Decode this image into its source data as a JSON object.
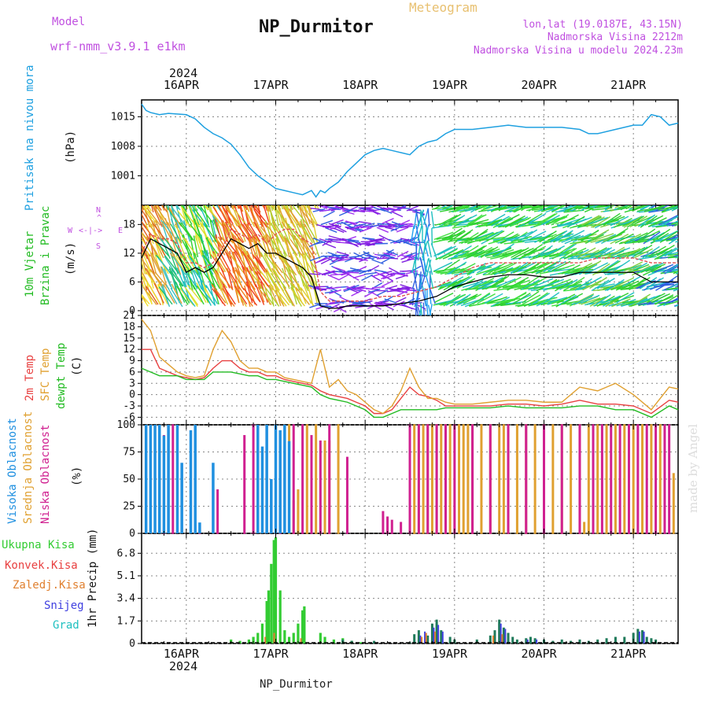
{
  "header": {
    "title": "NP_Durmitor",
    "model_label": "Model",
    "model_value": "wrf-nmm_v3.9.1 e1km",
    "meteogram": "Meteogram",
    "lonlat": "lon,lat (19.0187E, 43.15N)",
    "elevation": "Nadmorska Visina 2212m",
    "model_elevation": "Nadmorska Visina u modelu 2024.23m"
  },
  "footer": {
    "station": "NP_Durmitor",
    "watermark": "made by Angel"
  },
  "colors": {
    "pressure": "#1ea0e0",
    "wind_label": "#22bb22",
    "wind_speed": "#000000",
    "wind_gust": "#e05050",
    "t2m": "#e84040",
    "tsfc": "#e0a030",
    "dewpt": "#22bb22",
    "cloud_high": "#2090e0",
    "cloud_mid": "#e0a030",
    "cloud_low": "#d02090",
    "precip_total": "#33cc33",
    "precip_conv": "#e84040",
    "precip_frz": "#e08030",
    "precip_snow": "#4040e0",
    "precip_grad": "#20c0c0"
  },
  "chart_data": [
    {
      "type": "line",
      "panel": "pressure",
      "label": "Pritisak na nivou mora",
      "unit": "(hPa)",
      "x_ticks": [
        "16APR",
        "17APR",
        "18APR",
        "19APR",
        "20APR",
        "21APR"
      ],
      "x_year": "2024",
      "yticks": [
        1001,
        1008,
        1015
      ],
      "ylim": [
        994,
        1019
      ],
      "x": [
        15.5,
        15.55,
        15.6,
        15.7,
        15.8,
        16.0,
        16.1,
        16.2,
        16.3,
        16.4,
        16.5,
        16.6,
        16.7,
        16.8,
        16.9,
        17.0,
        17.1,
        17.2,
        17.3,
        17.4,
        17.45,
        17.5,
        17.55,
        17.6,
        17.7,
        17.8,
        17.9,
        18.0,
        18.1,
        18.2,
        18.3,
        18.4,
        18.5,
        18.6,
        18.7,
        18.8,
        18.9,
        19.0,
        19.2,
        19.4,
        19.6,
        19.8,
        20.0,
        20.2,
        20.4,
        20.5,
        20.6,
        20.8,
        21.0,
        21.1,
        21.2,
        21.3,
        21.4,
        21.5
      ],
      "y": [
        1018,
        1016.5,
        1016,
        1015.5,
        1015.8,
        1015.5,
        1014.5,
        1012.5,
        1011,
        1010,
        1008.5,
        1006,
        1003,
        1001,
        999.5,
        998,
        997.5,
        997,
        996.5,
        997.5,
        996,
        997.5,
        997,
        998,
        999.5,
        1002,
        1004,
        1006,
        1007,
        1007.5,
        1007,
        1006.5,
        1006,
        1008,
        1009,
        1009.5,
        1011,
        1012,
        1012,
        1012.5,
        1013,
        1012.5,
        1012.5,
        1012.5,
        1012,
        1011,
        1011,
        1012,
        1013,
        1013,
        1015.5,
        1015,
        1013,
        1013.5
      ]
    },
    {
      "type": "line",
      "panel": "wind",
      "label": "10m Vjetar Brzina i Pravac",
      "unit": "(m/s)",
      "compass": [
        "N",
        "S",
        "W",
        "E"
      ],
      "yticks": [
        0,
        6,
        12,
        18
      ],
      "ylim": [
        -1,
        22
      ],
      "x": [
        15.5,
        15.6,
        15.7,
        15.8,
        15.9,
        16.0,
        16.1,
        16.2,
        16.3,
        16.4,
        16.5,
        16.6,
        16.7,
        16.8,
        16.9,
        17.0,
        17.1,
        17.2,
        17.3,
        17.4,
        17.5,
        17.6,
        17.7,
        17.8,
        17.9,
        18.0,
        18.2,
        18.4,
        18.6,
        18.8,
        19.0,
        19.2,
        19.4,
        19.6,
        19.8,
        20.0,
        20.2,
        20.4,
        20.6,
        20.8,
        21.0,
        21.2,
        21.4,
        21.5
      ],
      "series": [
        {
          "name": "speed",
          "values": [
            11,
            15,
            14,
            13,
            12,
            8,
            9,
            8,
            9,
            12,
            15,
            14,
            13,
            14,
            12,
            12,
            11,
            10,
            9,
            7,
            1,
            0.5,
            0.5,
            1,
            1,
            1,
            1,
            1.5,
            2,
            3,
            5,
            6,
            7,
            7.5,
            7.5,
            7,
            7,
            8,
            8,
            8,
            8,
            6,
            6,
            6
          ]
        },
        {
          "name": "gust",
          "values": [
            12,
            16,
            15,
            15,
            14,
            10,
            10,
            9,
            10,
            13,
            17,
            16,
            15,
            16,
            14,
            16,
            17,
            17,
            15,
            14,
            4,
            2,
            2,
            2,
            2,
            2,
            3,
            3,
            4,
            5,
            7,
            9,
            10,
            10,
            10,
            10,
            10,
            10,
            11,
            11,
            11,
            10,
            10,
            10
          ]
        }
      ]
    },
    {
      "type": "line",
      "panel": "temperature",
      "labels": [
        "2m Temp",
        "SFC Temp",
        "dewpt Temp"
      ],
      "unit": "(C)",
      "yticks": [
        -6,
        -3,
        0,
        3,
        6,
        9,
        12,
        15,
        18,
        21
      ],
      "ylim": [
        -8,
        21
      ],
      "x": [
        15.5,
        15.6,
        15.7,
        15.8,
        15.9,
        16.0,
        16.1,
        16.2,
        16.3,
        16.4,
        16.5,
        16.6,
        16.7,
        16.8,
        16.9,
        17.0,
        17.1,
        17.2,
        17.3,
        17.4,
        17.5,
        17.6,
        17.7,
        17.8,
        17.9,
        18.0,
        18.1,
        18.2,
        18.3,
        18.4,
        18.5,
        18.6,
        18.7,
        18.8,
        18.9,
        19.0,
        19.2,
        19.4,
        19.6,
        19.8,
        20.0,
        20.2,
        20.4,
        20.6,
        20.8,
        21.0,
        21.2,
        21.4,
        21.5
      ],
      "series": [
        {
          "name": "2m Temp",
          "values": [
            12,
            12,
            7,
            6,
            5,
            4.5,
            4,
            4.5,
            7,
            9,
            9,
            7,
            6,
            6,
            5,
            5,
            4,
            3.5,
            3,
            2.5,
            1,
            0,
            -0.5,
            -1,
            -2,
            -3,
            -5,
            -5,
            -4,
            -1,
            2,
            0,
            -0.5,
            -1.5,
            -3,
            -3,
            -3,
            -3,
            -2.5,
            -2.5,
            -3,
            -2.5,
            -1.5,
            -2.5,
            -2.5,
            -3,
            -5,
            -1.5,
            -2
          ]
        },
        {
          "name": "SFC Temp",
          "values": [
            20,
            17,
            10,
            8,
            6,
            5,
            4.5,
            5,
            12,
            17,
            14,
            9,
            7,
            7,
            6,
            6,
            4.5,
            4,
            3.5,
            3,
            12,
            2,
            4,
            1,
            0,
            -2,
            -4,
            -5,
            -3,
            1,
            7,
            2,
            -1,
            -1,
            -2,
            -2.5,
            -2.5,
            -2,
            -1.5,
            -1.5,
            -2,
            -2,
            2,
            1,
            3,
            0,
            -4,
            2,
            1.5
          ]
        },
        {
          "name": "dewpt Temp",
          "values": [
            7,
            6,
            5,
            5,
            5,
            4,
            4,
            4,
            6,
            6,
            6,
            5.5,
            5,
            5,
            4,
            4,
            3.5,
            3,
            2.5,
            2,
            0,
            -1,
            -1.5,
            -2,
            -3,
            -4,
            -6,
            -6,
            -5,
            -4,
            -4,
            -4,
            -4,
            -4,
            -3.5,
            -3.5,
            -3.5,
            -3.5,
            -3,
            -3.5,
            -3.5,
            -3.5,
            -3,
            -3,
            -4,
            -4,
            -6,
            -3,
            -4
          ]
        }
      ]
    },
    {
      "type": "bar",
      "panel": "clouds",
      "labels": [
        "Visoka Oblacnost",
        "Srednja Oblacnost",
        "Niska Oblacnost"
      ],
      "unit": "(%)",
      "yticks": [
        0,
        25,
        50,
        75,
        100
      ],
      "ylim": [
        0,
        100
      ],
      "high": [
        [
          15.55,
          100
        ],
        [
          15.6,
          100
        ],
        [
          15.65,
          100
        ],
        [
          15.7,
          100
        ],
        [
          15.75,
          90
        ],
        [
          15.8,
          100
        ],
        [
          15.9,
          100
        ],
        [
          15.95,
          65
        ],
        [
          16.05,
          95
        ],
        [
          16.1,
          100
        ],
        [
          16.15,
          10
        ],
        [
          16.3,
          65
        ],
        [
          16.8,
          100
        ],
        [
          16.85,
          80
        ],
        [
          16.9,
          100
        ],
        [
          16.95,
          50
        ],
        [
          17.0,
          100
        ],
        [
          17.05,
          95
        ],
        [
          17.1,
          100
        ],
        [
          17.15,
          85
        ]
      ],
      "mid": [
        [
          17.15,
          100
        ],
        [
          17.2,
          30
        ],
        [
          17.25,
          40
        ],
        [
          17.35,
          100
        ],
        [
          17.45,
          100
        ],
        [
          17.55,
          85
        ],
        [
          17.6,
          85
        ],
        [
          17.7,
          100
        ],
        [
          18.5,
          5
        ],
        [
          18.55,
          100
        ],
        [
          18.6,
          100
        ],
        [
          18.65,
          100
        ],
        [
          18.7,
          100
        ],
        [
          18.75,
          100
        ],
        [
          18.8,
          100
        ],
        [
          18.85,
          100
        ],
        [
          18.9,
          100
        ],
        [
          18.95,
          100
        ],
        [
          19.05,
          100
        ],
        [
          19.1,
          100
        ],
        [
          19.15,
          100
        ],
        [
          19.2,
          100
        ],
        [
          19.3,
          100
        ],
        [
          19.4,
          100
        ],
        [
          19.5,
          100
        ],
        [
          19.55,
          100
        ],
        [
          19.6,
          100
        ],
        [
          19.7,
          100
        ],
        [
          19.8,
          100
        ],
        [
          19.9,
          100
        ],
        [
          20.0,
          100
        ],
        [
          20.1,
          100
        ],
        [
          20.2,
          100
        ],
        [
          20.3,
          100
        ],
        [
          20.4,
          100
        ],
        [
          20.45,
          10
        ],
        [
          20.5,
          100
        ],
        [
          20.6,
          100
        ],
        [
          20.7,
          100
        ],
        [
          20.8,
          100
        ],
        [
          20.9,
          100
        ],
        [
          21.0,
          100
        ],
        [
          21.1,
          100
        ],
        [
          21.2,
          100
        ],
        [
          21.3,
          100
        ],
        [
          21.45,
          55
        ]
      ],
      "low": [
        [
          15.75,
          90
        ],
        [
          15.85,
          100
        ],
        [
          16.15,
          2
        ],
        [
          16.35,
          40
        ],
        [
          16.65,
          90
        ],
        [
          16.75,
          100
        ],
        [
          17.05,
          80
        ],
        [
          17.2,
          100
        ],
        [
          17.3,
          100
        ],
        [
          17.4,
          90
        ],
        [
          17.5,
          85
        ],
        [
          17.6,
          100
        ],
        [
          17.8,
          70
        ],
        [
          18.2,
          20
        ],
        [
          18.25,
          15
        ],
        [
          18.3,
          12
        ],
        [
          18.4,
          10
        ],
        [
          18.5,
          100
        ],
        [
          18.6,
          100
        ],
        [
          18.7,
          100
        ],
        [
          18.8,
          100
        ],
        [
          18.9,
          100
        ],
        [
          19.0,
          100
        ],
        [
          19.2,
          100
        ],
        [
          19.4,
          100
        ],
        [
          19.6,
          100
        ],
        [
          19.8,
          100
        ],
        [
          20.0,
          100
        ],
        [
          20.2,
          100
        ],
        [
          20.4,
          100
        ],
        [
          20.55,
          100
        ],
        [
          20.65,
          100
        ],
        [
          20.75,
          100
        ],
        [
          20.85,
          100
        ],
        [
          20.95,
          100
        ],
        [
          21.05,
          100
        ],
        [
          21.15,
          100
        ],
        [
          21.25,
          100
        ],
        [
          21.35,
          100
        ],
        [
          21.4,
          100
        ]
      ]
    },
    {
      "type": "bar",
      "panel": "precip",
      "labels": [
        "Ukupna Kisa",
        "Konvek.Kisa",
        "Zaledj.Kisa",
        "Snijeg",
        "Grad"
      ],
      "unit": "1hr Precip (mm)",
      "yticks": [
        0,
        1.7,
        3.4,
        5.1,
        6.8
      ],
      "ylim": [
        0,
        8.3
      ],
      "total": [
        [
          16.5,
          0.3
        ],
        [
          16.6,
          0.2
        ],
        [
          16.7,
          0.3
        ],
        [
          16.75,
          0.5
        ],
        [
          16.8,
          0.8
        ],
        [
          16.85,
          1.5
        ],
        [
          16.9,
          3.2
        ],
        [
          16.92,
          4.0
        ],
        [
          16.95,
          6.0
        ],
        [
          16.98,
          7.8
        ],
        [
          17.0,
          8.0
        ],
        [
          17.05,
          4.0
        ],
        [
          17.1,
          1.0
        ],
        [
          17.15,
          0.5
        ],
        [
          17.2,
          0.8
        ],
        [
          17.25,
          1.5
        ],
        [
          17.3,
          2.5
        ],
        [
          17.32,
          2.8
        ],
        [
          17.5,
          0.8
        ],
        [
          17.55,
          0.5
        ],
        [
          17.65,
          0.3
        ],
        [
          17.75,
          0.4
        ],
        [
          17.85,
          0.2
        ],
        [
          17.95,
          0.1
        ]
      ],
      "conv": [
        [
          16.9,
          0.5
        ],
        [
          17.0,
          0.8
        ],
        [
          17.3,
          0.4
        ],
        [
          18.65,
          0.5
        ],
        [
          18.7,
          0.8
        ],
        [
          18.8,
          0.9
        ],
        [
          19.45,
          0.6
        ],
        [
          19.55,
          0.7
        ]
      ],
      "snow": [
        [
          17.75,
          0.3
        ],
        [
          17.85,
          0.2
        ],
        [
          18.1,
          0.2
        ],
        [
          18.5,
          0.1
        ],
        [
          18.55,
          0.7
        ],
        [
          18.6,
          1.0
        ],
        [
          18.7,
          0.6
        ],
        [
          18.75,
          1.5
        ],
        [
          18.8,
          1.8
        ],
        [
          18.85,
          1.0
        ],
        [
          18.95,
          0.5
        ],
        [
          19.0,
          0.3
        ],
        [
          19.25,
          0.3
        ],
        [
          19.4,
          0.6
        ],
        [
          19.45,
          1.0
        ],
        [
          19.5,
          1.8
        ],
        [
          19.55,
          1.2
        ],
        [
          19.6,
          0.8
        ],
        [
          19.65,
          0.5
        ],
        [
          19.7,
          0.3
        ],
        [
          19.8,
          0.4
        ],
        [
          19.85,
          0.5
        ],
        [
          19.9,
          0.4
        ],
        [
          20.0,
          0.3
        ],
        [
          20.1,
          0.2
        ],
        [
          20.2,
          0.3
        ],
        [
          20.3,
          0.2
        ],
        [
          20.4,
          0.3
        ],
        [
          20.5,
          0.2
        ],
        [
          20.6,
          0.3
        ],
        [
          20.7,
          0.4
        ],
        [
          20.8,
          0.5
        ],
        [
          20.9,
          0.5
        ],
        [
          21.0,
          0.8
        ],
        [
          21.05,
          1.1
        ],
        [
          21.1,
          1.0
        ],
        [
          21.15,
          0.5
        ],
        [
          21.2,
          0.4
        ],
        [
          21.25,
          0.3
        ]
      ],
      "grad": [
        [
          18.6,
          0.6
        ],
        [
          18.65,
          0.9
        ],
        [
          18.75,
          1.2
        ],
        [
          18.8,
          1.4
        ],
        [
          18.85,
          0.9
        ],
        [
          19.5,
          1.5
        ],
        [
          19.55,
          1.1
        ],
        [
          19.8,
          0.3
        ],
        [
          19.9,
          0.3
        ],
        [
          21.05,
          0.9
        ],
        [
          21.1,
          0.9
        ]
      ]
    }
  ]
}
